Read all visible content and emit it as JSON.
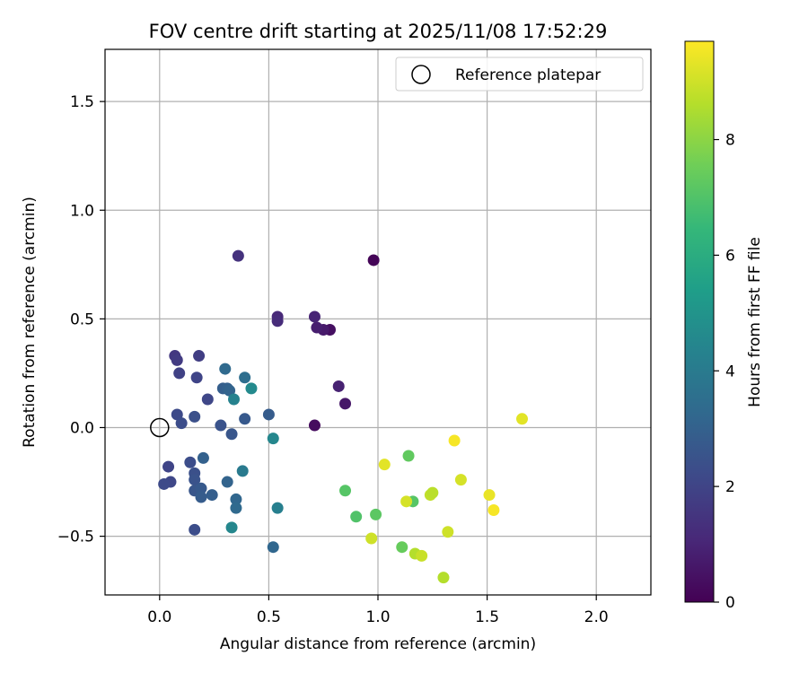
{
  "chart_data": {
    "type": "scatter",
    "title": "FOV centre drift starting at 2025/11/08 17:52:29",
    "xlabel": "Angular distance from reference (arcmin)",
    "ylabel": "Rotation from reference (arcmin)",
    "xlim": [
      -0.25,
      2.25
    ],
    "ylim": [
      -0.77,
      1.74
    ],
    "xticks": [
      0.0,
      0.5,
      1.0,
      1.5,
      2.0
    ],
    "xtick_labels": [
      "0.0",
      "0.5",
      "1.0",
      "1.5",
      "2.0"
    ],
    "yticks": [
      -0.5,
      0.0,
      0.5,
      1.0,
      1.5
    ],
    "ytick_labels": [
      "−0.5",
      "0.0",
      "0.5",
      "1.0",
      "1.5"
    ],
    "grid": true,
    "legend": {
      "position": "top-right",
      "label": "Reference platepar"
    },
    "reference_point": {
      "x": 0.0,
      "y": 0.0
    },
    "colorbar": {
      "label": "Hours from first FF file",
      "min": 0,
      "max": 9.7,
      "ticks": [
        0,
        2,
        4,
        6,
        8
      ],
      "tick_labels": [
        "0",
        "2",
        "4",
        "6",
        "8"
      ],
      "colormap_stops": [
        "#440154",
        "#482878",
        "#3e4989",
        "#31688e",
        "#26828e",
        "#1f9e89",
        "#35b779",
        "#6ece58",
        "#b5de2b",
        "#fde725"
      ]
    },
    "series": [
      {
        "name": "FOV centre",
        "points": [
          {
            "x": 0.98,
            "y": 0.77,
            "h": 0.1
          },
          {
            "x": 0.71,
            "y": 0.01,
            "h": 0.3
          },
          {
            "x": 0.78,
            "y": 0.45,
            "h": 0.4
          },
          {
            "x": 0.85,
            "y": 0.11,
            "h": 0.6
          },
          {
            "x": 0.75,
            "y": 0.45,
            "h": 0.7
          },
          {
            "x": 0.72,
            "y": 0.46,
            "h": 0.8
          },
          {
            "x": 0.82,
            "y": 0.19,
            "h": 0.9
          },
          {
            "x": 0.71,
            "y": 0.51,
            "h": 1.0
          },
          {
            "x": 0.54,
            "y": 0.51,
            "h": 1.1
          },
          {
            "x": 0.54,
            "y": 0.49,
            "h": 1.2
          },
          {
            "x": 0.36,
            "y": 0.79,
            "h": 1.4
          },
          {
            "x": 0.07,
            "y": 0.33,
            "h": 1.6
          },
          {
            "x": 0.08,
            "y": 0.31,
            "h": 1.7
          },
          {
            "x": 0.18,
            "y": 0.33,
            "h": 1.8
          },
          {
            "x": 0.09,
            "y": 0.25,
            "h": 1.9
          },
          {
            "x": 0.17,
            "y": 0.23,
            "h": 2.0
          },
          {
            "x": 0.22,
            "y": 0.13,
            "h": 2.1
          },
          {
            "x": 0.08,
            "y": 0.06,
            "h": 2.2
          },
          {
            "x": 0.1,
            "y": 0.02,
            "h": 2.3
          },
          {
            "x": 0.16,
            "y": 0.05,
            "h": 2.4
          },
          {
            "x": 0.28,
            "y": 0.01,
            "h": 2.5
          },
          {
            "x": 0.33,
            "y": -0.03,
            "h": 2.6
          },
          {
            "x": 0.39,
            "y": 0.04,
            "h": 2.7
          },
          {
            "x": 0.5,
            "y": 0.06,
            "h": 2.8
          },
          {
            "x": 0.29,
            "y": 0.18,
            "h": 2.9
          },
          {
            "x": 0.31,
            "y": 0.18,
            "h": 3.0
          },
          {
            "x": 0.32,
            "y": 0.17,
            "h": 3.1
          },
          {
            "x": 0.04,
            "y": -0.18,
            "h": 2.0
          },
          {
            "x": 0.05,
            "y": -0.25,
            "h": 2.1
          },
          {
            "x": 0.02,
            "y": -0.26,
            "h": 2.2
          },
          {
            "x": 0.14,
            "y": -0.16,
            "h": 2.3
          },
          {
            "x": 0.16,
            "y": -0.21,
            "h": 2.4
          },
          {
            "x": 0.16,
            "y": -0.24,
            "h": 2.5
          },
          {
            "x": 0.16,
            "y": -0.29,
            "h": 2.6
          },
          {
            "x": 0.19,
            "y": -0.28,
            "h": 2.7
          },
          {
            "x": 0.19,
            "y": -0.32,
            "h": 2.8
          },
          {
            "x": 0.24,
            "y": -0.31,
            "h": 2.9
          },
          {
            "x": 0.2,
            "y": -0.14,
            "h": 3.0
          },
          {
            "x": 0.31,
            "y": -0.25,
            "h": 3.1
          },
          {
            "x": 0.35,
            "y": -0.33,
            "h": 3.2
          },
          {
            "x": 0.35,
            "y": -0.37,
            "h": 3.3
          },
          {
            "x": 0.16,
            "y": -0.47,
            "h": 2.3
          },
          {
            "x": 0.3,
            "y": 0.27,
            "h": 3.3
          },
          {
            "x": 0.39,
            "y": 0.23,
            "h": 3.5
          },
          {
            "x": 0.34,
            "y": 0.13,
            "h": 4.3
          },
          {
            "x": 0.42,
            "y": 0.18,
            "h": 4.6
          },
          {
            "x": 0.52,
            "y": -0.05,
            "h": 4.5
          },
          {
            "x": 0.38,
            "y": -0.2,
            "h": 4.0
          },
          {
            "x": 0.33,
            "y": -0.46,
            "h": 4.5
          },
          {
            "x": 0.52,
            "y": -0.55,
            "h": 3.2
          },
          {
            "x": 0.54,
            "y": -0.37,
            "h": 4.2
          },
          {
            "x": 0.85,
            "y": -0.29,
            "h": 7.1
          },
          {
            "x": 0.9,
            "y": -0.41,
            "h": 7.0
          },
          {
            "x": 0.99,
            "y": -0.4,
            "h": 7.2
          },
          {
            "x": 1.14,
            "y": -0.13,
            "h": 7.3
          },
          {
            "x": 1.16,
            "y": -0.34,
            "h": 7.1
          },
          {
            "x": 1.11,
            "y": -0.55,
            "h": 7.4
          },
          {
            "x": 1.13,
            "y": -0.34,
            "h": 9.1
          },
          {
            "x": 1.03,
            "y": -0.17,
            "h": 9.3
          },
          {
            "x": 0.97,
            "y": -0.51,
            "h": 9.0
          },
          {
            "x": 1.17,
            "y": -0.58,
            "h": 8.6
          },
          {
            "x": 1.2,
            "y": -0.59,
            "h": 8.9
          },
          {
            "x": 1.24,
            "y": -0.31,
            "h": 8.8
          },
          {
            "x": 1.25,
            "y": -0.3,
            "h": 8.7
          },
          {
            "x": 1.32,
            "y": -0.48,
            "h": 9.0
          },
          {
            "x": 1.3,
            "y": -0.69,
            "h": 8.6
          },
          {
            "x": 1.35,
            "y": -0.06,
            "h": 9.6
          },
          {
            "x": 1.38,
            "y": -0.24,
            "h": 9.1
          },
          {
            "x": 1.51,
            "y": -0.31,
            "h": 9.4
          },
          {
            "x": 1.53,
            "y": -0.38,
            "h": 9.6
          },
          {
            "x": 1.66,
            "y": 0.04,
            "h": 9.3
          }
        ]
      }
    ]
  }
}
